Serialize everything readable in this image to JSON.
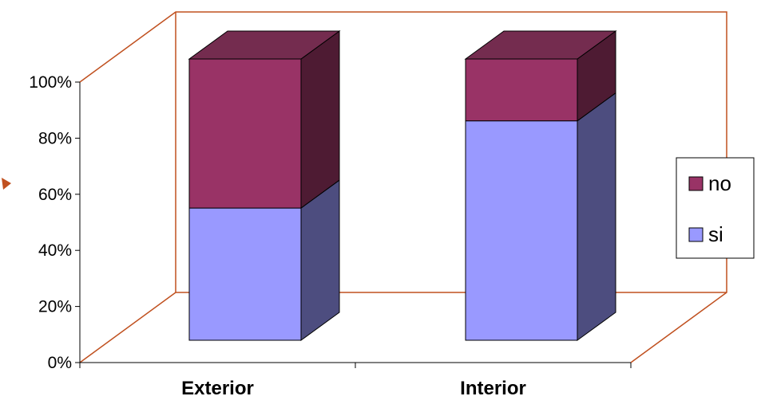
{
  "chart_data": {
    "type": "bar",
    "stacked": true,
    "percent_stacked": true,
    "three_d": true,
    "categories": [
      "Exterior",
      "Interior"
    ],
    "series": [
      {
        "name": "si",
        "values": [
          47,
          78
        ],
        "front_color": "#9999ff",
        "side_color": "#4d4d7f"
      },
      {
        "name": "no",
        "values": [
          53,
          22
        ],
        "front_color": "#993366",
        "top_color": "#742c4f",
        "side_color": "#4e1b33"
      }
    ],
    "ylim": [
      0,
      100
    ],
    "ytick_labels": [
      "0%",
      "20%",
      "40%",
      "60%",
      "80%",
      "100%"
    ],
    "legend": {
      "placement": "right",
      "items": [
        "no",
        "si"
      ]
    },
    "grid": false,
    "frame_color": "#c0501f",
    "xlabel": "",
    "ylabel": ""
  }
}
